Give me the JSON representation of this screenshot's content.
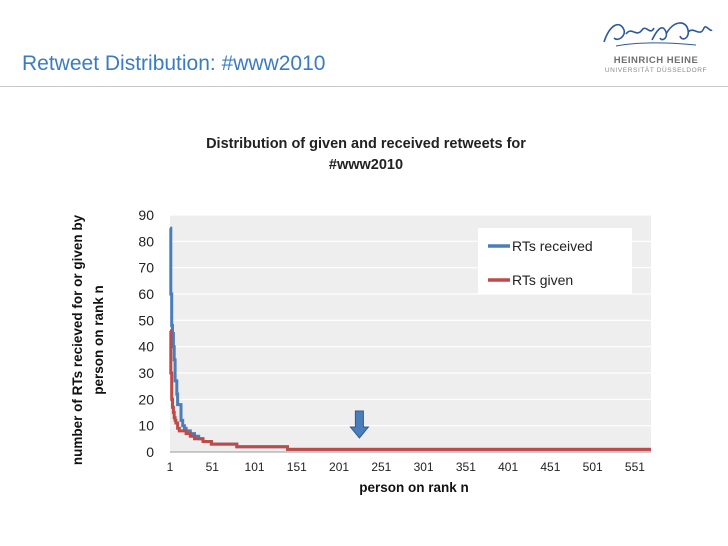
{
  "slide": {
    "title": "Retweet Distribution: #www2010"
  },
  "logo": {
    "name": "HEINRICH HEINE",
    "subtitle": "UNIVERSITÄT DÜSSELDORF"
  },
  "colors": {
    "title": "#3a7cc4",
    "received": "#4a7ebb",
    "given": "#be4b48",
    "arrow": "#4a7ebb",
    "plot_bg": "#eeeeee",
    "grid": "#ffffff"
  },
  "chart_data": {
    "type": "line",
    "title": "Distribution of given and received retweets for #www2010",
    "title_lines": [
      "Distribution of given and received retweets for",
      "#www2010"
    ],
    "xlabel": "person on rank n",
    "ylabel_lines": [
      "number of RTs recieved for or given by",
      "person on rank n"
    ],
    "xlim": [
      1,
      570
    ],
    "ylim": [
      0,
      90
    ],
    "x_ticks": [
      1,
      51,
      101,
      151,
      201,
      251,
      301,
      351,
      401,
      451,
      501,
      551
    ],
    "y_ticks": [
      0,
      10,
      20,
      30,
      40,
      50,
      60,
      70,
      80,
      90
    ],
    "grid": true,
    "legend_position": "top-right",
    "annotation": {
      "type": "down-arrow",
      "x": 225
    },
    "series": [
      {
        "name": "RTs received",
        "x": [
          1,
          2,
          3,
          4,
          5,
          6,
          7,
          8,
          9,
          10,
          12,
          14,
          16,
          18,
          20,
          25,
          30,
          35,
          40,
          50,
          60,
          80,
          100,
          120,
          140,
          150,
          160,
          180,
          200,
          250,
          300,
          400,
          500,
          570
        ],
        "y": [
          85,
          60,
          48,
          45,
          40,
          35,
          27,
          27,
          22,
          18,
          18,
          12,
          10,
          9,
          8,
          7,
          6,
          5,
          4,
          3,
          3,
          2,
          2,
          2,
          1,
          1,
          1,
          1,
          1,
          1,
          1,
          1,
          1,
          1
        ]
      },
      {
        "name": "RTs given",
        "x": [
          1,
          2,
          3,
          4,
          5,
          6,
          7,
          8,
          10,
          12,
          15,
          20,
          25,
          30,
          40,
          50,
          60,
          80,
          100,
          120,
          135,
          140,
          150,
          200,
          300,
          400,
          500,
          570
        ],
        "y": [
          46,
          30,
          20,
          17,
          15,
          13,
          12,
          11,
          9,
          8,
          8,
          7,
          6,
          5,
          4,
          3,
          3,
          2,
          2,
          2,
          2,
          1,
          1,
          1,
          1,
          1,
          1,
          1
        ]
      }
    ]
  }
}
